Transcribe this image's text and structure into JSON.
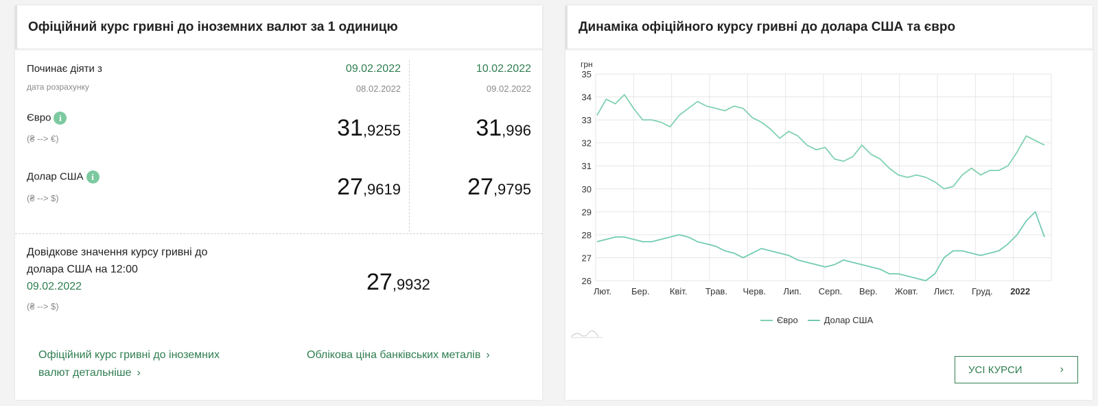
{
  "left": {
    "title": "Офіційний курс гривні до іноземних валют за 1 одиницю",
    "starts_label": "Починає діяти з",
    "calc_label": "дата розрахунку",
    "col1": {
      "date": "09.02.2022",
      "calc_date": "08.02.2022",
      "eur_int": "31",
      "eur_frac": ",9255",
      "usd_int": "27",
      "usd_frac": ",9619"
    },
    "col2": {
      "date": "10.02.2022",
      "calc_date": "09.02.2022",
      "eur_int": "31",
      "eur_frac": ",996",
      "usd_int": "27",
      "usd_frac": ",9795"
    },
    "eur_label": "Євро",
    "eur_sub": "(₴ --> €)",
    "usd_label": "Долар США",
    "usd_sub": "(₴ --> $)",
    "info_glyph": "i",
    "ref_label_line1": "Довідкове значення курсу гривні до",
    "ref_label_line2": "долара США на 12:00",
    "ref_date": "09.02.2022",
    "ref_sub": "(₴ --> $)",
    "ref_int": "27",
    "ref_frac": ",9932",
    "link_detail_line1": "Офіційний курс гривні до іноземних",
    "link_detail_line2": "валют детальніше",
    "link_metals": "Облікова ціна банківських металів",
    "chevron": "›"
  },
  "right": {
    "title": "Динаміка офіційного курсу гривні до долара США та євро",
    "button_label": "УСІ КУРСИ",
    "chevron": "›"
  },
  "chart_data": {
    "type": "line",
    "ylabel": "грн",
    "ylim": [
      26,
      35
    ],
    "yticks": [
      26,
      27,
      28,
      29,
      30,
      31,
      32,
      33,
      34,
      35
    ],
    "x_labels": [
      "Лют.",
      "Бер.",
      "Квіт.",
      "Трав.",
      "Черв.",
      "Лип.",
      "Серп.",
      "Вер.",
      "Жовт.",
      "Лист.",
      "Груд.",
      "2022"
    ],
    "legend_position": "bottom",
    "colors": {
      "eur": "#7fd1b0",
      "usd": "#72cbb3",
      "grid": "#e6e6e6"
    },
    "series": [
      {
        "name": "Євро",
        "values": [
          33.2,
          33.9,
          33.7,
          34.1,
          33.5,
          33.0,
          33.0,
          32.9,
          32.7,
          33.2,
          33.5,
          33.8,
          33.6,
          33.5,
          33.4,
          33.6,
          33.5,
          33.1,
          32.9,
          32.6,
          32.2,
          32.5,
          32.3,
          31.9,
          31.7,
          31.8,
          31.3,
          31.2,
          31.4,
          31.9,
          31.5,
          31.3,
          30.9,
          30.6,
          30.5,
          30.6,
          30.5,
          30.3,
          30.0,
          30.1,
          30.6,
          30.9,
          30.6,
          30.8,
          30.8,
          31.0,
          31.6,
          32.3,
          32.1,
          31.9
        ]
      },
      {
        "name": "Долар США",
        "values": [
          27.7,
          27.8,
          27.9,
          27.9,
          27.8,
          27.7,
          27.7,
          27.8,
          27.9,
          28.0,
          27.9,
          27.7,
          27.6,
          27.5,
          27.3,
          27.2,
          27.0,
          27.2,
          27.4,
          27.3,
          27.2,
          27.1,
          26.9,
          26.8,
          26.7,
          26.6,
          26.7,
          26.9,
          26.8,
          26.7,
          26.6,
          26.5,
          26.3,
          26.3,
          26.2,
          26.1,
          26.0,
          26.3,
          27.0,
          27.3,
          27.3,
          27.2,
          27.1,
          27.2,
          27.3,
          27.6,
          28.0,
          28.6,
          29.0,
          27.9
        ]
      }
    ]
  }
}
